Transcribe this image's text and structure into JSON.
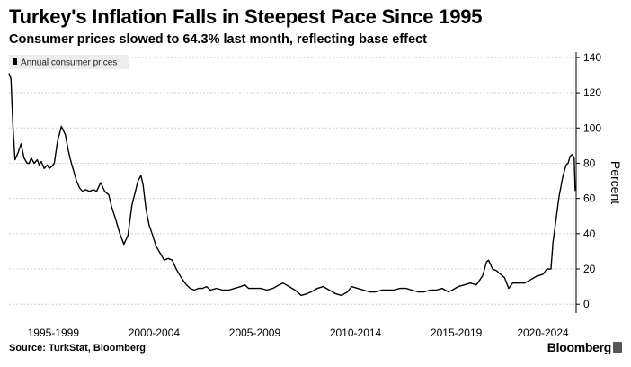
{
  "title": "Turkey's Inflation Falls in Steepest Pace Since 1995",
  "subtitle": "Consumer prices slowed to 64.3% last month, reflecting base effect",
  "source": "Source: TurkStat, Bloomberg",
  "brand": "Bloomberg",
  "chart_data": {
    "type": "line",
    "title": "Turkey's Inflation Falls in Steepest Pace Since 1995",
    "xlabel": "",
    "ylabel": "Percent",
    "ylim": [
      -5,
      142
    ],
    "xlim": [
      1995.0,
      2023.15
    ],
    "yticks": [
      0,
      20,
      40,
      60,
      80,
      100,
      120,
      140
    ],
    "y_tick_labels": [
      "0",
      "20",
      "40",
      "60",
      "80",
      "100",
      "120",
      "140"
    ],
    "x_tick_positions": [
      1997.2,
      2002.2,
      2007.2,
      2012.2,
      2017.2,
      2021.5
    ],
    "x_tick_labels": [
      "1995-1999",
      "2000-2004",
      "2005-2009",
      "2010-2014",
      "2015-2019",
      "2020-2024"
    ],
    "legend": [
      "Annual consumer prices"
    ],
    "legend_position": "top-left",
    "grid": true,
    "colors": {
      "line": "#000000",
      "grid": "#d0d0d0",
      "legend_bg": "#ececec"
    },
    "series": [
      {
        "name": "Annual consumer prices",
        "x": [
          1995.0,
          1995.1,
          1995.2,
          1995.3,
          1995.45,
          1995.6,
          1995.75,
          1995.9,
          1996.0,
          1996.1,
          1996.25,
          1996.4,
          1996.5,
          1996.6,
          1996.75,
          1996.9,
          1997.0,
          1997.1,
          1997.25,
          1997.4,
          1997.6,
          1997.8,
          1997.95,
          1998.05,
          1998.2,
          1998.35,
          1998.5,
          1998.65,
          1998.8,
          1999.0,
          1999.2,
          1999.35,
          1999.55,
          1999.75,
          1999.95,
          2000.1,
          2000.3,
          2000.5,
          2000.7,
          2000.9,
          2001.1,
          2001.25,
          2001.4,
          2001.55,
          2001.65,
          2001.8,
          2001.95,
          2002.1,
          2002.3,
          2002.5,
          2002.7,
          2002.9,
          2003.1,
          2003.3,
          2003.55,
          2003.8,
          2004.0,
          2004.2,
          2004.4,
          2004.6,
          2004.8,
          2005.0,
          2005.3,
          2005.6,
          2005.9,
          2006.2,
          2006.5,
          2006.7,
          2006.9,
          2007.2,
          2007.5,
          2007.8,
          2008.1,
          2008.4,
          2008.6,
          2008.9,
          2009.2,
          2009.5,
          2009.8,
          2010.0,
          2010.3,
          2010.6,
          2010.9,
          2011.2,
          2011.5,
          2011.8,
          2012.0,
          2012.3,
          2012.6,
          2012.9,
          2013.2,
          2013.5,
          2013.8,
          2014.1,
          2014.4,
          2014.7,
          2015.0,
          2015.3,
          2015.6,
          2015.9,
          2016.2,
          2016.5,
          2016.8,
          2017.0,
          2017.3,
          2017.6,
          2017.9,
          2018.2,
          2018.5,
          2018.7,
          2018.8,
          2019.0,
          2019.2,
          2019.4,
          2019.6,
          2019.8,
          2020.0,
          2020.3,
          2020.6,
          2020.9,
          2021.2,
          2021.5,
          2021.7,
          2021.9,
          2022.0,
          2022.15,
          2022.3,
          2022.5,
          2022.65,
          2022.75,
          2022.85,
          2022.95,
          2023.05,
          2023.1
        ],
        "values": [
          131,
          128,
          100,
          82,
          86,
          91,
          83,
          80,
          80,
          83,
          80,
          82,
          79,
          81,
          77,
          79,
          77,
          78,
          80,
          92,
          101,
          96,
          87,
          82,
          76,
          70,
          66,
          64,
          65,
          64,
          65,
          64,
          69,
          64,
          62,
          55,
          48,
          40,
          34,
          39,
          56,
          63,
          70,
          73,
          68,
          54,
          45,
          40,
          33,
          29,
          25,
          26,
          25,
          20,
          15,
          11,
          9,
          8,
          9,
          9,
          10,
          8,
          9,
          8,
          8,
          9,
          10,
          11,
          9,
          9,
          9,
          8,
          9,
          11,
          12,
          10,
          8,
          5,
          6,
          7,
          9,
          10,
          8,
          6,
          5,
          7,
          10,
          9,
          8,
          7,
          7,
          8,
          8,
          8,
          9,
          9,
          8,
          7,
          7,
          8,
          8,
          9,
          7,
          8,
          10,
          11,
          12,
          11,
          16,
          24,
          25,
          20,
          19,
          17,
          15,
          9,
          12,
          12,
          12,
          14,
          16,
          17,
          20,
          20,
          35,
          48,
          61,
          73,
          79,
          80,
          84,
          85,
          83,
          64.3
        ]
      }
    ]
  }
}
